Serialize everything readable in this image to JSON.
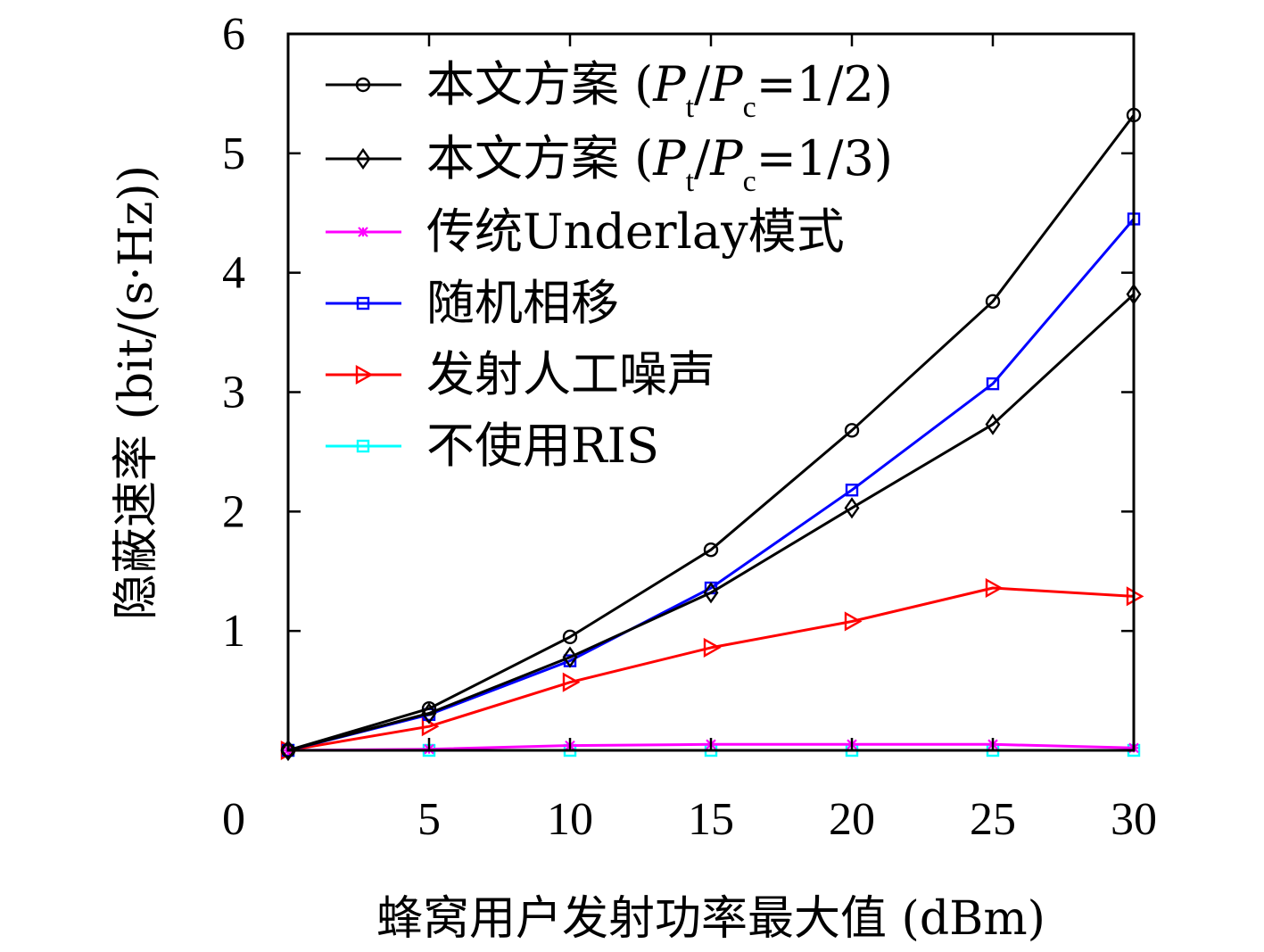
{
  "chart_data": {
    "type": "line",
    "xlabel": "蜂窝用户发射功率最大值 (dBm)",
    "ylabel": "隐蔽速率 (bit/(s·Hz))",
    "xlim": [
      0,
      30
    ],
    "ylim": [
      0,
      6
    ],
    "origin_label": "0",
    "x_ticks": [
      5,
      10,
      15,
      20,
      25,
      30
    ],
    "y_ticks": [
      1,
      2,
      3,
      4,
      5,
      6
    ],
    "x": [
      0,
      5,
      10,
      15,
      20,
      25,
      30
    ],
    "legend_position": "top-left",
    "grid": false,
    "series": [
      {
        "name_parts": {
          "prefix": "本文方案 (",
          "v1": "P",
          "s1": "t",
          "slash": "/",
          "v2": "P",
          "s2": "c",
          "suffix": "=1/2)"
        },
        "color": "#000000",
        "marker": "circle",
        "values": [
          0,
          0.35,
          0.95,
          1.68,
          2.68,
          3.76,
          5.32
        ]
      },
      {
        "name_parts": {
          "prefix": "本文方案 (",
          "v1": "P",
          "s1": "t",
          "slash": "/",
          "v2": "P",
          "s2": "c",
          "suffix": "=1/3)"
        },
        "color": "#000000",
        "marker": "diamond",
        "values": [
          0,
          0.31,
          0.78,
          1.32,
          2.03,
          2.73,
          3.82
        ]
      },
      {
        "name": "传统Underlay模式",
        "color": "#ff00ff",
        "marker": "star",
        "values": [
          0,
          0.01,
          0.04,
          0.05,
          0.05,
          0.05,
          0.02
        ]
      },
      {
        "name": "随机相移",
        "color": "#0000ff",
        "marker": "square",
        "values": [
          0,
          0.3,
          0.75,
          1.36,
          2.18,
          3.07,
          4.45
        ]
      },
      {
        "name": "发射人工噪声",
        "color": "#ff0000",
        "marker": "triangle-right",
        "values": [
          0,
          0.2,
          0.57,
          0.86,
          1.08,
          1.36,
          1.29
        ]
      },
      {
        "name": "不使用RIS",
        "color": "#00ffff",
        "marker": "square",
        "values": [
          0,
          0.0,
          0.0,
          0.0,
          0.0,
          0.0,
          0.0
        ]
      }
    ]
  }
}
